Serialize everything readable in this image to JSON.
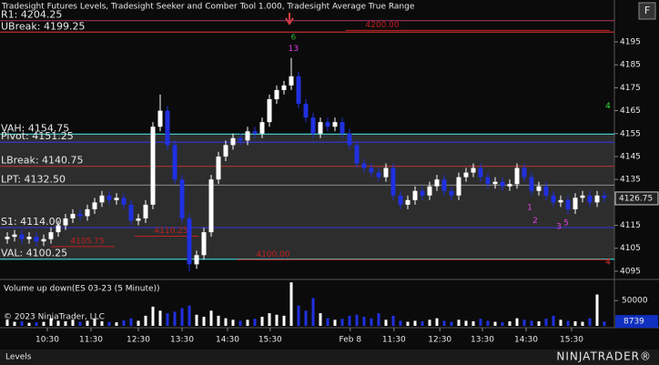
{
  "chart_data": {
    "type": "candlestick",
    "title": "Tradesight Futures Levels, Tradesight Seeker and Comber Tool 1.000, Tradesight Average True Range",
    "corner_button": "F",
    "ylim": [
      4092.2,
      4213.25
    ],
    "yticks": [
      4195,
      4185,
      4175,
      4165,
      4155,
      4145,
      4135,
      4125,
      4115,
      4105,
      4095
    ],
    "last_price": {
      "value": 4126.75,
      "label": "4126.75"
    },
    "levels": [
      {
        "label": "R1: 4204.25",
        "value": 4204.25,
        "color": "#a03060"
      },
      {
        "label": "UBreak: 4199.25",
        "value": 4199.25,
        "color": "#c03030"
      },
      {
        "label": "VAH: 4154.75",
        "value": 4154.75,
        "color": "#40c8c8"
      },
      {
        "label": "Pivot: 4151.25",
        "value": 4151.25,
        "color": "#3535d0"
      },
      {
        "label": "LBreak: 4140.75",
        "value": 4140.75,
        "color": "#b03030"
      },
      {
        "label": "LPT: 4132.50",
        "value": 4132.5,
        "color": "#808080"
      },
      {
        "label": "S1: 4114.00",
        "value": 4114,
        "color": "#3535d0"
      },
      {
        "label": "VAL: 4100.25",
        "value": 4100.25,
        "color": "#40c8c8"
      }
    ],
    "shade_color": "#4a4a4a",
    "markers": [
      {
        "label": "4200.00",
        "value": 4200,
        "color": "#c02020"
      },
      {
        "label": "4105.75",
        "value": 4105.75,
        "color": "#c02020"
      },
      {
        "label": "4110.25",
        "value": 4110.25,
        "color": "#c02020"
      },
      {
        "label": "4100.00",
        "value": 4100,
        "color": "#c02020"
      }
    ],
    "annotations": [
      {
        "text": "6",
        "bar": 39.3,
        "price": 4197,
        "color": "#30b030"
      },
      {
        "text": "13",
        "bar": 39.3,
        "price": 4192,
        "color": "#e040e0"
      },
      {
        "text": "4",
        "bar": 82.5,
        "price": 4167,
        "color": "#30e030"
      },
      {
        "text": "4",
        "bar": 82.5,
        "price": 4099,
        "color": "#e03030"
      },
      {
        "text": "1",
        "bar": 71.75,
        "price": 4122.8,
        "color": "#e040e0"
      },
      {
        "text": "2",
        "bar": 72.5,
        "price": 4117,
        "color": "#e040e0"
      },
      {
        "text": "3",
        "bar": 75.75,
        "price": 4114.4,
        "color": "#e040e0"
      },
      {
        "text": "5",
        "bar": 76.75,
        "price": 4116,
        "color": "#e040e0"
      }
    ],
    "up_color": "#ffffff",
    "down_color": "#2030e0",
    "open": [
      4109,
      4110,
      4111,
      4109,
      4110,
      4108,
      4109,
      4112,
      4115,
      4118,
      4120,
      4119,
      4122,
      4125,
      4128,
      4126,
      4127,
      4124,
      4117,
      4118,
      4124,
      4158,
      4165,
      4150,
      4135,
      4118,
      4098,
      4102,
      4112,
      4135,
      4145,
      4150,
      4153,
      4152,
      4156,
      4155,
      4160,
      4170,
      4174,
      4176,
      4180,
      4168,
      4162,
      4155,
      4160,
      4158,
      4160,
      4155,
      4150,
      4142,
      4140,
      4138,
      4136,
      4140,
      4128,
      4124,
      4126,
      4130,
      4128,
      4132,
      4135,
      4130,
      4128,
      4136,
      4138,
      4140,
      4136,
      4133,
      4134,
      4132,
      4133,
      4140,
      4136,
      4130,
      4132,
      4128,
      4125,
      4126,
      4122,
      4127,
      4128,
      4125,
      4128
    ],
    "high": [
      4112,
      4113,
      4113,
      4112,
      4112,
      4111,
      4114,
      4117,
      4120,
      4122,
      4122,
      4124,
      4127,
      4130,
      4130,
      4129,
      4129,
      4126,
      4120,
      4126,
      4160,
      4172,
      4167,
      4152,
      4137,
      4120,
      4104,
      4114,
      4137,
      4147,
      4152,
      4155,
      4155,
      4158,
      4158,
      4162,
      4172,
      4176,
      4178,
      4188,
      4182,
      4170,
      4164,
      4162,
      4162,
      4162,
      4162,
      4157,
      4152,
      4144,
      4142,
      4140,
      4142,
      4142,
      4130,
      4128,
      4132,
      4132,
      4134,
      4137,
      4137,
      4132,
      4138,
      4140,
      4142,
      4142,
      4138,
      4136,
      4136,
      4135,
      4142,
      4142,
      4138,
      4134,
      4134,
      4130,
      4128,
      4128,
      4129,
      4130,
      4130,
      4130,
      4130
    ],
    "low": [
      4107,
      4108,
      4107,
      4107,
      4106,
      4106,
      4107,
      4110,
      4113,
      4116,
      4117,
      4117,
      4120,
      4123,
      4124,
      4124,
      4122,
      4115,
      4115,
      4116,
      4122,
      4156,
      4148,
      4133,
      4116,
      4095,
      4096,
      4100,
      4110,
      4133,
      4143,
      4148,
      4150,
      4150,
      4153,
      4153,
      4158,
      4168,
      4172,
      4174,
      4166,
      4160,
      4153,
      4153,
      4156,
      4156,
      4153,
      4148,
      4140,
      4138,
      4136,
      4134,
      4134,
      4126,
      4122,
      4122,
      4124,
      4126,
      4126,
      4130,
      4128,
      4126,
      4126,
      4134,
      4136,
      4134,
      4131,
      4131,
      4130,
      4130,
      4131,
      4134,
      4128,
      4128,
      4126,
      4123,
      4123,
      4120,
      4120,
      4125,
      4123,
      4123,
      4125
    ],
    "close": [
      4110,
      4111,
      4109,
      4110,
      4108,
      4109,
      4112,
      4115,
      4118,
      4120,
      4119,
      4122,
      4125,
      4128,
      4126,
      4127,
      4124,
      4117,
      4118,
      4124,
      4158,
      4165,
      4150,
      4135,
      4118,
      4098,
      4102,
      4112,
      4135,
      4145,
      4150,
      4153,
      4152,
      4156,
      4155,
      4160,
      4170,
      4174,
      4176,
      4180,
      4168,
      4162,
      4155,
      4160,
      4158,
      4160,
      4155,
      4150,
      4142,
      4140,
      4138,
      4136,
      4140,
      4128,
      4124,
      4126,
      4130,
      4128,
      4132,
      4135,
      4130,
      4128,
      4136,
      4138,
      4140,
      4136,
      4133,
      4134,
      4132,
      4133,
      4140,
      4136,
      4130,
      4132,
      4128,
      4125,
      4126,
      4122,
      4127,
      4128,
      4125,
      4128,
      4127
    ],
    "xticks": [
      {
        "value": 5.5,
        "label": "10:30"
      },
      {
        "value": 11.5,
        "label": "11:30"
      },
      {
        "value": 18,
        "label": "12:30"
      },
      {
        "value": 24,
        "label": "13:30"
      },
      {
        "value": 30.25,
        "label": "14:30"
      },
      {
        "value": 36.1,
        "label": "15:30"
      },
      {
        "value": 47.1,
        "label": "Feb 8"
      },
      {
        "value": 53.1,
        "label": "11:30"
      },
      {
        "value": 59.4,
        "label": "12:30"
      },
      {
        "value": 65.25,
        "label": "13:30"
      },
      {
        "value": 71.25,
        "label": "14:30"
      },
      {
        "value": 77.5,
        "label": "15:30"
      }
    ],
    "volume": {
      "title": "Volume up down(ES 03-23 (5 Minute))",
      "copyright": "© 2023 NinjaTrader, LLC",
      "vlim": [
        0,
        90000
      ],
      "vticks": [
        50000
      ],
      "last": 8739,
      "values": [
        12000,
        8000,
        9000,
        6000,
        7000,
        8000,
        15000,
        10000,
        9000,
        12000,
        8000,
        10000,
        14000,
        9000,
        8000,
        7000,
        11000,
        15000,
        10000,
        20000,
        38000,
        30000,
        25000,
        28000,
        35000,
        40000,
        22000,
        18000,
        30000,
        20000,
        15000,
        12000,
        10000,
        12000,
        14000,
        18000,
        25000,
        22000,
        20000,
        86000,
        40000,
        30000,
        55000,
        25000,
        15000,
        12000,
        14000,
        20000,
        22000,
        18000,
        15000,
        25000,
        12000,
        20000,
        10000,
        8000,
        10000,
        9000,
        12000,
        15000,
        10000,
        8000,
        12000,
        10000,
        9000,
        14000,
        10000,
        8000,
        7000,
        9000,
        15000,
        12000,
        10000,
        9000,
        14000,
        20000,
        12000,
        10000,
        9000,
        8000,
        15000,
        62000,
        8739
      ]
    },
    "tab": "Levels",
    "logo": "NINJATRADER®"
  }
}
